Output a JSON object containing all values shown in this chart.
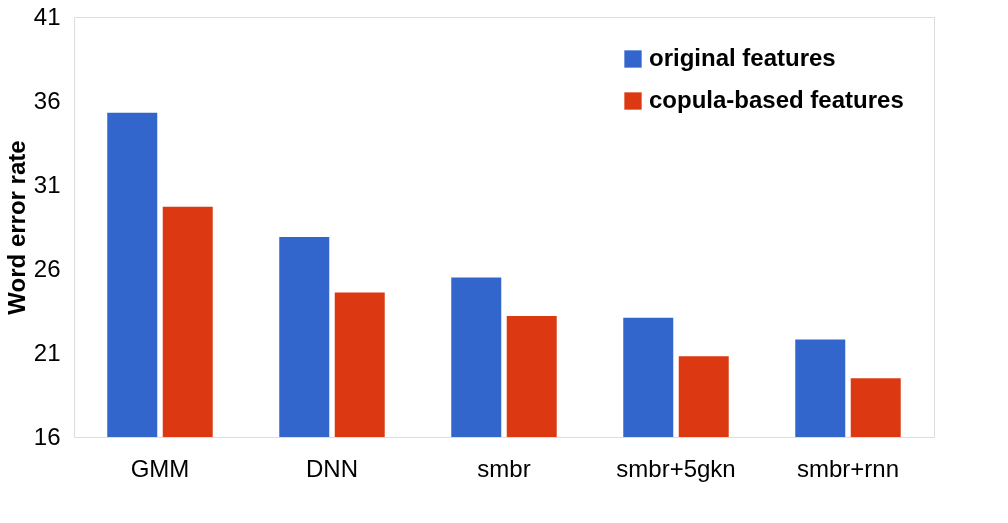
{
  "chart_data": {
    "type": "bar",
    "ylabel": "Word error rate",
    "categories": [
      "GMM",
      "DNN",
      "smbr",
      "smbr+5gkn",
      "smbr+rnn"
    ],
    "series": [
      {
        "name": "original features",
        "color": "#3366cc",
        "values": [
          35.3,
          27.9,
          25.5,
          23.1,
          21.8
        ]
      },
      {
        "name": "copula-based features",
        "color": "#dc3912",
        "values": [
          29.7,
          24.6,
          23.2,
          20.8,
          19.5
        ]
      }
    ],
    "ylim": [
      16,
      41
    ],
    "yticks": [
      16,
      21,
      26,
      31,
      36,
      41
    ],
    "grid": false,
    "legend": "top right"
  }
}
